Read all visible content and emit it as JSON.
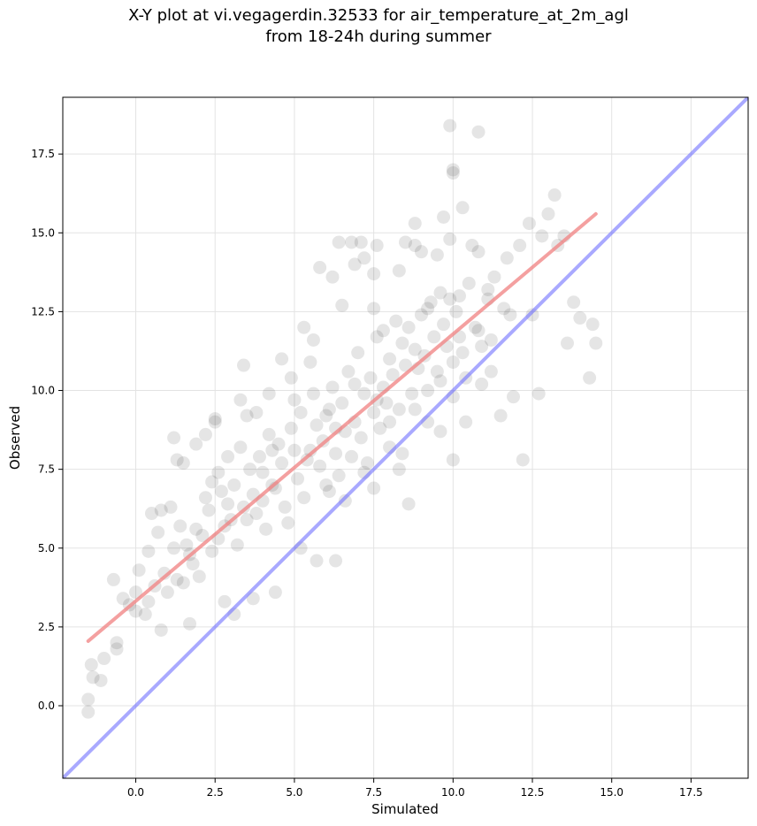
{
  "chart_data": {
    "type": "scatter",
    "title_line1": "X-Y plot at vi.vegagerdin.32533 for air_temperature_at_2m_agl",
    "title_line2": "from 18-24h during summer",
    "xlabel": "Simulated",
    "ylabel": "Observed",
    "xlim": [
      -2.3,
      19.3
    ],
    "ylim": [
      -2.3,
      19.3
    ],
    "xticks": [
      0.0,
      2.5,
      5.0,
      7.5,
      10.0,
      12.5,
      15.0,
      17.5
    ],
    "yticks": [
      0.0,
      2.5,
      5.0,
      7.5,
      10.0,
      12.5,
      15.0,
      17.5
    ],
    "xtick_labels": [
      "0.0",
      "2.5",
      "5.0",
      "7.5",
      "10.0",
      "12.5",
      "15.0",
      "17.5"
    ],
    "ytick_labels": [
      "0.0",
      "2.5",
      "5.0",
      "7.5",
      "10.0",
      "12.5",
      "15.0",
      "17.5"
    ],
    "grid": true,
    "point_color": "#000000",
    "point_opacity": 0.1,
    "fit_line": {
      "x": [
        -1.5,
        14.5
      ],
      "y": [
        2.05,
        15.6
      ],
      "color": "#f08080"
    },
    "identity_line": {
      "x": [
        -2.3,
        19.3
      ],
      "y": [
        -2.3,
        19.3
      ],
      "color": "#7070ff"
    },
    "series": [
      {
        "points": [
          [
            -1.5,
            -0.2
          ],
          [
            -1.5,
            0.2
          ],
          [
            -1.4,
            1.3
          ],
          [
            -1.35,
            0.9
          ],
          [
            -1.1,
            0.8
          ],
          [
            -1.0,
            1.5
          ],
          [
            -0.7,
            4.0
          ],
          [
            -0.6,
            2.0
          ],
          [
            -0.6,
            1.8
          ],
          [
            -0.4,
            3.4
          ],
          [
            -0.2,
            3.2
          ],
          [
            0.0,
            3.6
          ],
          [
            0.1,
            4.3
          ],
          [
            0.0,
            3.0
          ],
          [
            0.3,
            2.9
          ],
          [
            0.4,
            4.9
          ],
          [
            0.5,
            6.1
          ],
          [
            0.4,
            3.3
          ],
          [
            0.6,
            3.8
          ],
          [
            0.7,
            5.5
          ],
          [
            0.8,
            2.4
          ],
          [
            0.8,
            6.2
          ],
          [
            1.2,
            8.5
          ],
          [
            1.3,
            7.8
          ],
          [
            1.1,
            6.3
          ],
          [
            1.5,
            7.7
          ],
          [
            1.9,
            8.3
          ],
          [
            1.7,
            2.6
          ],
          [
            2.2,
            8.6
          ],
          [
            2.5,
            9.1
          ],
          [
            2.5,
            9.0
          ],
          [
            2.4,
            7.1
          ],
          [
            2.9,
            7.9
          ],
          [
            2.8,
            3.3
          ],
          [
            3.1,
            2.9
          ],
          [
            3.3,
            9.7
          ],
          [
            3.4,
            10.8
          ],
          [
            3.5,
            9.2
          ],
          [
            3.7,
            3.4
          ],
          [
            3.8,
            9.3
          ],
          [
            4.2,
            9.9
          ],
          [
            4.3,
            8.1
          ],
          [
            4.4,
            3.6
          ],
          [
            4.6,
            11.0
          ],
          [
            4.9,
            10.4
          ],
          [
            5.0,
            8.1
          ],
          [
            5.2,
            5.0
          ],
          [
            5.3,
            12.0
          ],
          [
            5.5,
            10.9
          ],
          [
            5.6,
            11.6
          ],
          [
            5.7,
            4.6
          ],
          [
            5.8,
            13.9
          ],
          [
            6.1,
            9.4
          ],
          [
            6.3,
            4.6
          ],
          [
            6.2,
            13.6
          ],
          [
            6.4,
            14.7
          ],
          [
            6.5,
            12.7
          ],
          [
            6.8,
            14.7
          ],
          [
            6.9,
            14.0
          ],
          [
            7.1,
            14.7
          ],
          [
            7.2,
            14.2
          ],
          [
            7.5,
            13.7
          ],
          [
            7.6,
            14.6
          ],
          [
            7.5,
            6.9
          ],
          [
            7.5,
            12.6
          ],
          [
            7.8,
            11.9
          ],
          [
            8.0,
            8.2
          ],
          [
            8.3,
            7.5
          ],
          [
            8.3,
            13.8
          ],
          [
            8.5,
            14.7
          ],
          [
            8.6,
            6.4
          ],
          [
            8.8,
            15.3
          ],
          [
            8.8,
            14.6
          ],
          [
            9.0,
            14.4
          ],
          [
            9.2,
            12.6
          ],
          [
            9.5,
            14.3
          ],
          [
            9.6,
            10.3
          ],
          [
            9.7,
            15.5
          ],
          [
            9.9,
            18.4
          ],
          [
            9.9,
            14.8
          ],
          [
            10.0,
            7.8
          ],
          [
            10.0,
            16.9
          ],
          [
            10.0,
            17.0
          ],
          [
            10.2,
            13.0
          ],
          [
            10.2,
            11.7
          ],
          [
            10.3,
            15.8
          ],
          [
            10.4,
            9.0
          ],
          [
            10.6,
            14.6
          ],
          [
            10.8,
            14.4
          ],
          [
            10.8,
            18.2
          ],
          [
            10.9,
            10.2
          ],
          [
            11.1,
            13.2
          ],
          [
            11.2,
            11.6
          ],
          [
            11.3,
            13.6
          ],
          [
            11.5,
            9.2
          ],
          [
            11.7,
            14.2
          ],
          [
            11.8,
            12.4
          ],
          [
            11.9,
            9.8
          ],
          [
            12.1,
            14.6
          ],
          [
            12.2,
            7.8
          ],
          [
            12.4,
            15.3
          ],
          [
            12.5,
            12.4
          ],
          [
            12.7,
            9.9
          ],
          [
            12.8,
            14.9
          ],
          [
            13.0,
            15.6
          ],
          [
            13.2,
            16.2
          ],
          [
            13.3,
            14.6
          ],
          [
            13.5,
            14.9
          ],
          [
            13.6,
            11.5
          ],
          [
            13.8,
            12.8
          ],
          [
            14.0,
            12.3
          ],
          [
            14.3,
            10.4
          ],
          [
            14.4,
            12.1
          ],
          [
            14.5,
            11.5
          ],
          [
            1.6,
            5.1
          ],
          [
            1.8,
            4.5
          ],
          [
            2.1,
            5.4
          ],
          [
            2.3,
            6.2
          ],
          [
            2.6,
            5.3
          ],
          [
            2.7,
            6.8
          ],
          [
            3.0,
            5.9
          ],
          [
            3.1,
            7.0
          ],
          [
            3.4,
            6.3
          ],
          [
            3.6,
            7.5
          ],
          [
            3.8,
            6.1
          ],
          [
            4.0,
            7.4
          ],
          [
            4.1,
            5.6
          ],
          [
            4.2,
            8.6
          ],
          [
            4.4,
            6.9
          ],
          [
            4.6,
            7.7
          ],
          [
            4.7,
            6.3
          ],
          [
            4.9,
            8.8
          ],
          [
            5.1,
            7.2
          ],
          [
            5.2,
            9.3
          ],
          [
            5.3,
            6.6
          ],
          [
            5.5,
            8.1
          ],
          [
            5.6,
            9.9
          ],
          [
            5.8,
            7.6
          ],
          [
            5.9,
            8.4
          ],
          [
            6.0,
            9.2
          ],
          [
            6.1,
            6.8
          ],
          [
            6.2,
            10.1
          ],
          [
            6.3,
            8.0
          ],
          [
            6.4,
            7.3
          ],
          [
            6.5,
            9.6
          ],
          [
            6.6,
            8.7
          ],
          [
            6.7,
            10.6
          ],
          [
            6.8,
            7.9
          ],
          [
            6.9,
            9.0
          ],
          [
            7.0,
            11.2
          ],
          [
            7.1,
            8.5
          ],
          [
            7.2,
            9.9
          ],
          [
            7.3,
            7.7
          ],
          [
            7.4,
            10.4
          ],
          [
            7.5,
            9.3
          ],
          [
            7.6,
            11.7
          ],
          [
            7.7,
            8.8
          ],
          [
            7.8,
            10.1
          ],
          [
            7.9,
            9.6
          ],
          [
            8.0,
            11.0
          ],
          [
            8.1,
            10.5
          ],
          [
            8.2,
            12.2
          ],
          [
            8.3,
            9.4
          ],
          [
            8.4,
            11.5
          ],
          [
            8.5,
            10.8
          ],
          [
            8.6,
            12.0
          ],
          [
            8.7,
            9.9
          ],
          [
            8.8,
            11.3
          ],
          [
            8.9,
            10.7
          ],
          [
            9.0,
            12.4
          ],
          [
            9.1,
            11.1
          ],
          [
            9.2,
            10.0
          ],
          [
            9.3,
            12.8
          ],
          [
            9.4,
            11.7
          ],
          [
            9.5,
            10.6
          ],
          [
            9.6,
            13.1
          ],
          [
            9.7,
            12.1
          ],
          [
            9.8,
            11.4
          ],
          [
            9.9,
            12.9
          ],
          [
            10.0,
            10.9
          ],
          [
            10.1,
            12.5
          ],
          [
            10.3,
            11.2
          ],
          [
            10.5,
            13.4
          ],
          [
            10.7,
            12.0
          ],
          [
            10.9,
            11.4
          ],
          [
            11.1,
            12.9
          ],
          [
            0.9,
            4.2
          ],
          [
            1.0,
            3.6
          ],
          [
            1.2,
            5.0
          ],
          [
            1.3,
            4.0
          ],
          [
            1.4,
            5.7
          ],
          [
            1.5,
            3.9
          ],
          [
            1.7,
            4.8
          ],
          [
            1.9,
            5.6
          ],
          [
            2.0,
            4.1
          ],
          [
            2.2,
            6.6
          ],
          [
            2.4,
            4.9
          ],
          [
            2.6,
            7.4
          ],
          [
            2.8,
            5.7
          ],
          [
            2.9,
            6.4
          ],
          [
            3.2,
            5.1
          ],
          [
            3.3,
            8.2
          ],
          [
            3.5,
            5.9
          ],
          [
            3.7,
            6.7
          ],
          [
            3.9,
            7.9
          ],
          [
            4.0,
            6.5
          ],
          [
            4.3,
            7.0
          ],
          [
            4.5,
            8.3
          ],
          [
            4.8,
            5.8
          ],
          [
            5.0,
            9.7
          ],
          [
            5.4,
            7.8
          ],
          [
            5.7,
            8.9
          ],
          [
            6.0,
            7.0
          ],
          [
            6.3,
            8.8
          ],
          [
            6.6,
            6.5
          ],
          [
            6.9,
            10.2
          ],
          [
            7.2,
            7.4
          ],
          [
            7.6,
            9.7
          ],
          [
            8.0,
            9.0
          ],
          [
            8.4,
            8.0
          ],
          [
            8.8,
            9.4
          ],
          [
            9.2,
            9.0
          ],
          [
            9.6,
            8.7
          ],
          [
            10.0,
            9.8
          ],
          [
            10.4,
            10.4
          ],
          [
            10.8,
            11.9
          ],
          [
            11.2,
            10.6
          ],
          [
            11.6,
            12.6
          ]
        ]
      }
    ]
  }
}
